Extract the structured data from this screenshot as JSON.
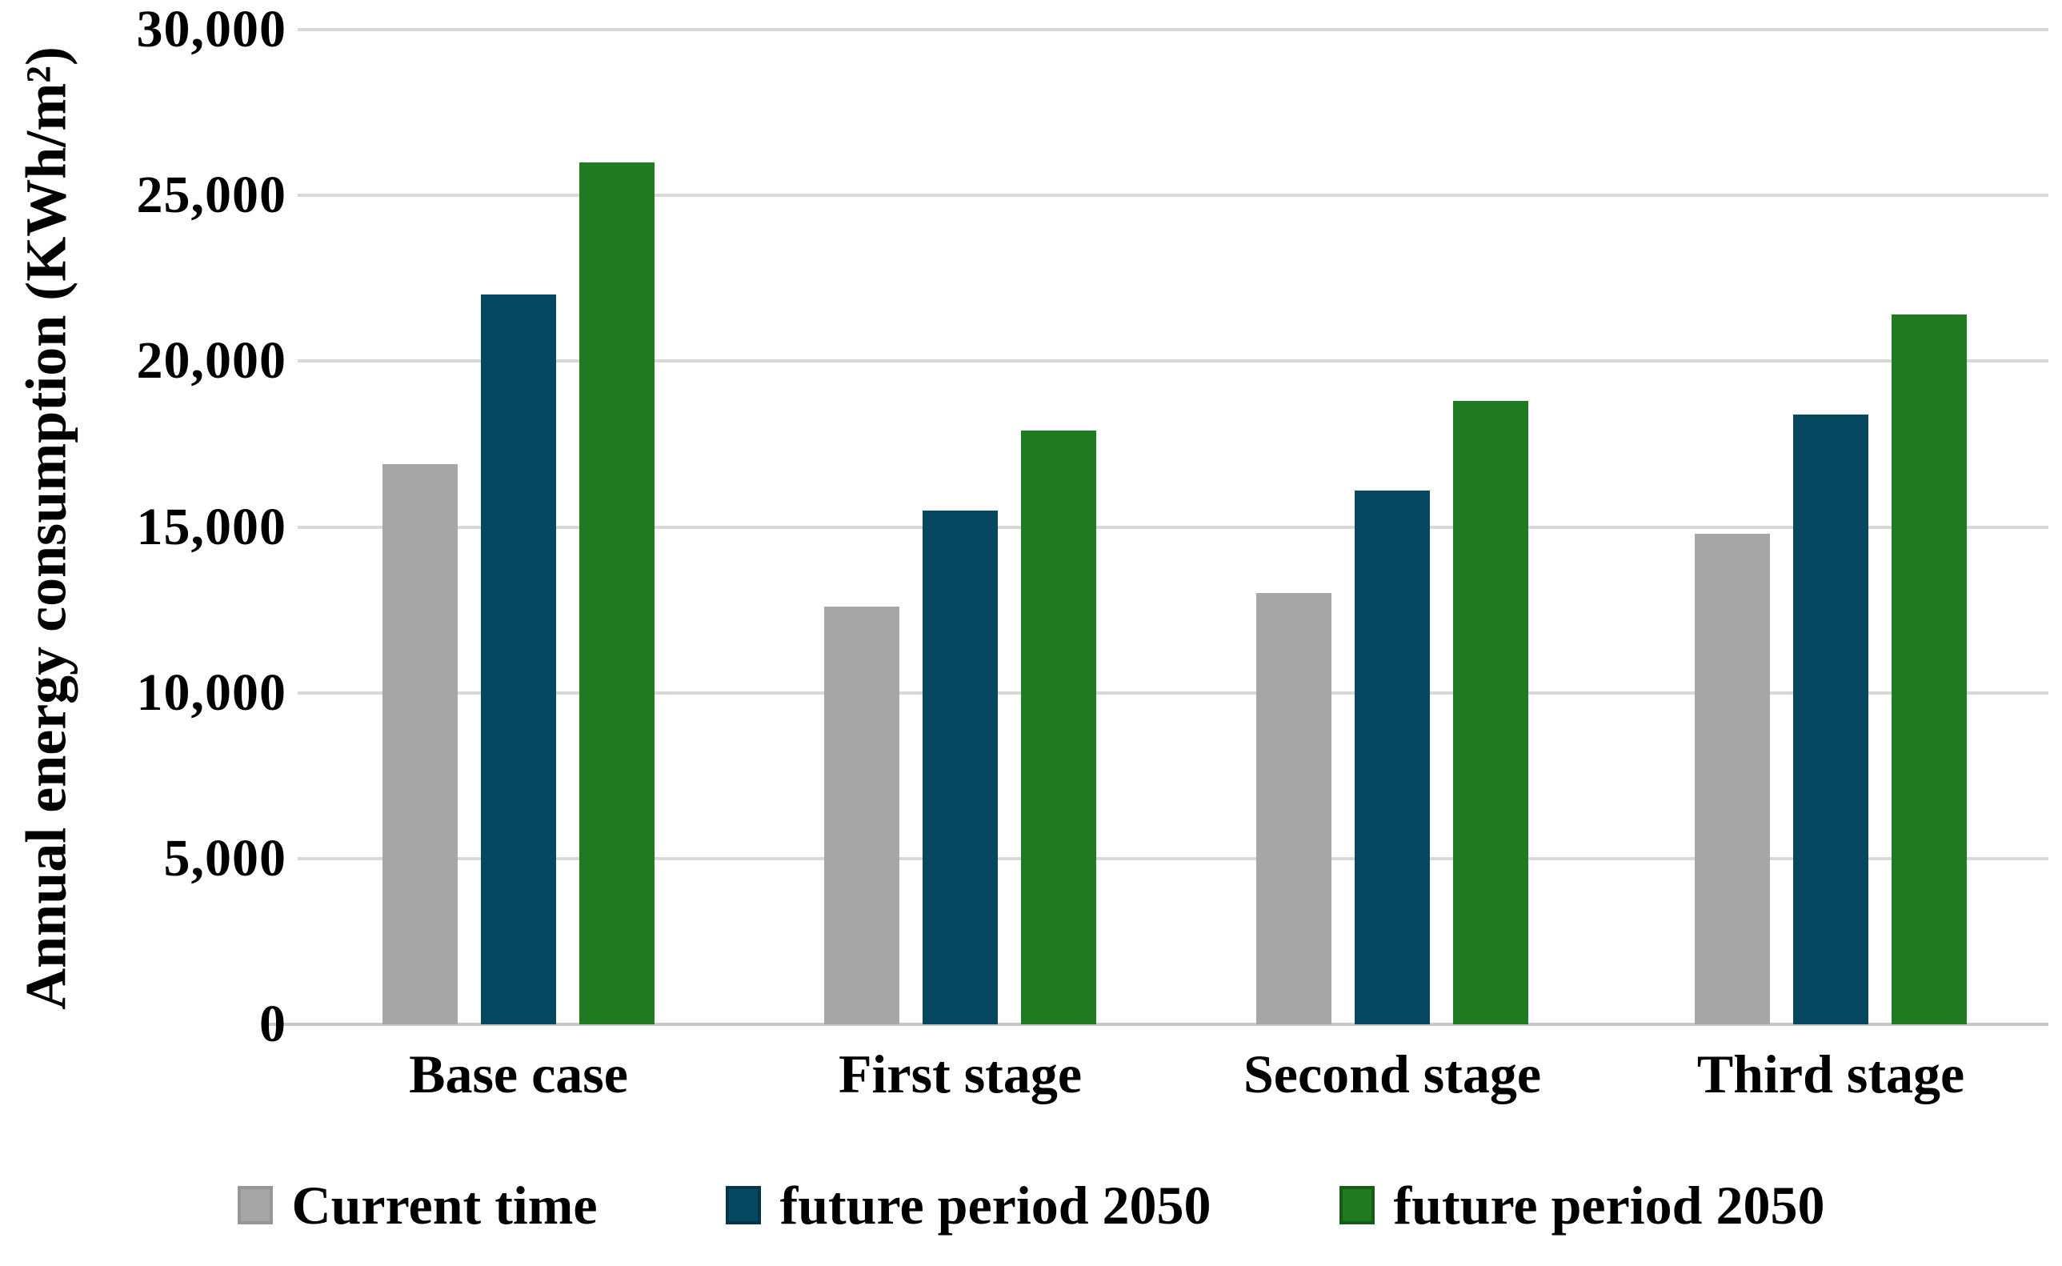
{
  "chart_data": {
    "type": "bar",
    "title": "",
    "xlabel": "",
    "ylabel": "Annual energy consumption (KWh/m²)",
    "categories": [
      "Base case",
      "First stage",
      "Second stage",
      "Third stage"
    ],
    "series": [
      {
        "name": "Current time",
        "color": "#a6a6a6",
        "border_color": "#979797",
        "values": [
          16900,
          12600,
          13000,
          14800
        ]
      },
      {
        "name": "future period 2050",
        "color": "#06485f",
        "border_color": "#043649",
        "values": [
          22000,
          15500,
          16100,
          18400
        ]
      },
      {
        "name": "future period 2050",
        "color": "#1f7a21",
        "border_color": "#165c17",
        "values": [
          26000,
          17900,
          18800,
          21400
        ]
      }
    ],
    "ylim": [
      0,
      30000
    ],
    "ytick_step": 5000,
    "ytick_labels": [
      "0",
      "5,000",
      "10,000",
      "15,000",
      "20,000",
      "25,000",
      "30,000"
    ],
    "grid": "horizontal",
    "legend_position": "bottom"
  }
}
